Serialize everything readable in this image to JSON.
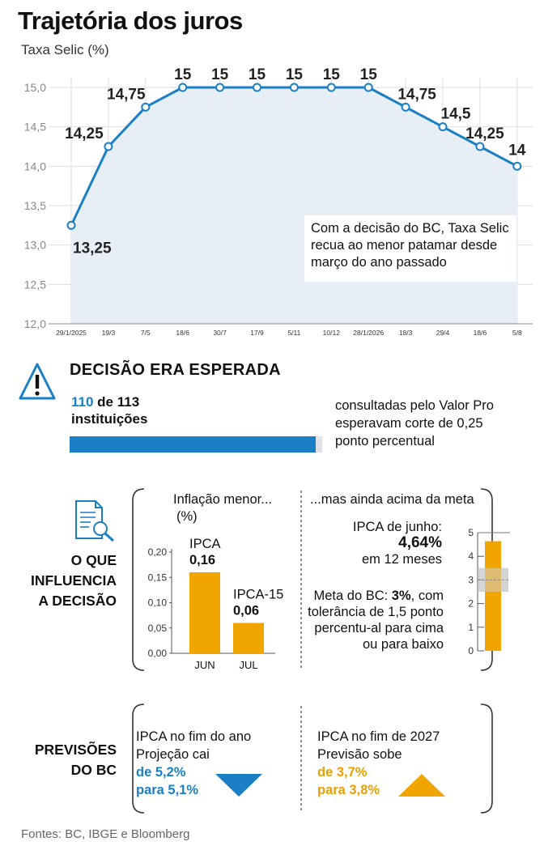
{
  "header": {
    "title": "Trajetória dos juros",
    "subtitle": "Taxa Selic (%)"
  },
  "chart_data": [
    {
      "type": "area",
      "title": "Trajetória dos juros",
      "ylabel": "Taxa Selic (%)",
      "ylim": [
        12.0,
        15.0
      ],
      "yticks": [
        "12,0",
        "12,5",
        "13,0",
        "13,5",
        "14,0",
        "14,5",
        "15,0"
      ],
      "categories": [
        "29/1/2025",
        "19/3",
        "7/5",
        "18/6",
        "30/7",
        "17/9",
        "5/11",
        "10/12",
        "28/1/2026",
        "18/3",
        "29/4",
        "18/6",
        "5/8"
      ],
      "values": [
        13.25,
        14.25,
        14.75,
        15,
        15,
        15,
        15,
        15,
        15,
        14.75,
        14.5,
        14.25,
        14
      ],
      "value_labels": [
        "13,25",
        "14,25",
        "14,75",
        "15",
        "15",
        "15",
        "15",
        "15",
        "15",
        "14,75",
        "14,5",
        "14,25",
        "14"
      ],
      "grid": true,
      "colors": {
        "line": "#1a7fc4",
        "fill": "#e8eef5"
      }
    },
    {
      "type": "bar",
      "title": "Inflação menor...",
      "ylabel": "(%)",
      "ylim": [
        0,
        0.2
      ],
      "yticks": [
        "0,00",
        "0,05",
        "0,10",
        "0,15",
        "0,20"
      ],
      "categories": [
        "JUN",
        "JUL"
      ],
      "series": [
        {
          "name": "IPCA",
          "values": [
            0.16,
            null
          ]
        },
        {
          "name": "IPCA-15",
          "values": [
            null,
            0.06
          ]
        }
      ],
      "value_labels": [
        "0,16",
        "0,06"
      ],
      "colors": {
        "bar": "#f0a500"
      }
    },
    {
      "type": "bar",
      "title": "...mas ainda acima da meta",
      "ylim": [
        0,
        5
      ],
      "yticks": [
        "0",
        "1",
        "2",
        "3",
        "4",
        "5"
      ],
      "values": [
        4.64
      ],
      "target": 3,
      "tolerance": 1.5,
      "colors": {
        "bar": "#f0a500",
        "band": "#cfcfcf"
      }
    }
  ],
  "note": {
    "text": "Com a decisão do BC, Taxa Selic recua ao menor patamar desde março do ano passado"
  },
  "decision": {
    "title": "DECISÃO ERA ESPERADA",
    "count": "110",
    "count_rest": "de 113",
    "count_unit": "instituições",
    "desc": "consultadas pelo Valor Pro esperavam corte de 0,25 ponto percentual",
    "progress": 0.9735,
    "icon": "warning-icon"
  },
  "influence": {
    "label": [
      "O QUE",
      "INFLUENCIA",
      "A DECISÃO"
    ],
    "icon": "document-search-icon",
    "left_bar1_name": "IPCA",
    "left_bar2_name": "IPCA-15",
    "ipca_june_label": "IPCA de junho:",
    "ipca_june_value": "4,64%",
    "ipca_june_period": "em 12 meses",
    "meta_label": "Meta do BC: ",
    "meta_value": "3%",
    "meta_rest": ", com tolerância de 1,5 ponto percentu-al para cima ou para baixo"
  },
  "forecast": {
    "label": [
      "PREVISÕES",
      "DO BC"
    ],
    "left": {
      "line1": "IPCA no fim do ano",
      "line2": "Projeção cai",
      "line3": "de 5,2%",
      "line4": "para 5,1%",
      "icon": "triangle-down-icon"
    },
    "right": {
      "line1": "IPCA no fim de 2027",
      "line2": "Previsão sobe",
      "line3": "de 3,7%",
      "line4": "para 3,8%",
      "icon": "triangle-up-icon"
    }
  },
  "footer": {
    "source": "Fontes: BC, IBGE e Bloomberg"
  }
}
